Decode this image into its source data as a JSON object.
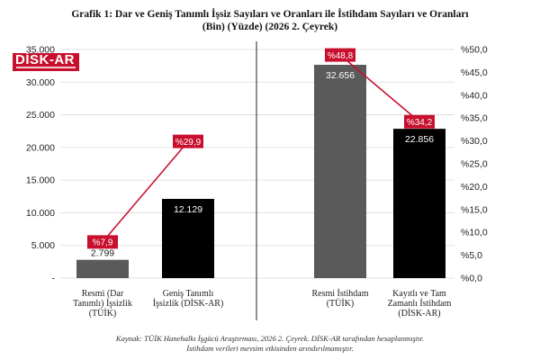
{
  "title_line1": "Grafik 1: Dar ve Geniş Tanımlı İşsiz Sayıları ve Oranları ile İstihdam Sayıları ve Oranları",
  "title_line2": "(Bin) (Yüzde) (2026 2. Çeyrek)",
  "logo_text": "DİSK-AR",
  "caption_line1": "Kaynak: TÜİK Hanehalkı İşgücü Araştırması, 2026 2. Çeyrek. DİSK-AR tarafından hesaplanmıştır.",
  "caption_line2": "İstihdam verileri mevsim etkisinden arındırılmamıştır.",
  "colors": {
    "accent": "#c8102e",
    "gray_bar": "#5a5a5a",
    "black_bar": "#000000",
    "grid": "#d9d9d9"
  },
  "chart_data": {
    "type": "bar",
    "left_axis": {
      "min": 0,
      "max": 35000,
      "step": 5000,
      "tick_labels": [
        "-",
        "5.000",
        "10.000",
        "15.000",
        "20.000",
        "25.000",
        "30.000",
        "35.000"
      ]
    },
    "right_axis": {
      "min": 0,
      "max": 50,
      "step": 5,
      "tick_labels": [
        "%0,0",
        "%5,0",
        "%10,0",
        "%15,0",
        "%20,0",
        "%25,0",
        "%30,0",
        "%35,0",
        "%40,0",
        "%45,0",
        "%50,0"
      ]
    },
    "grid": true,
    "groups": [
      {
        "bars": [
          {
            "category": [
              "Resmi (Dar",
              "Tanımlı) İşsizlik",
              "(TÜİK)"
            ],
            "value": 2799,
            "value_label": "2.799",
            "rate": 7.9,
            "rate_label": "%7,9",
            "color": "#5a5a5a"
          },
          {
            "category": [
              "Geniş Tanımlı",
              "İşsizlik (DİSK-AR)"
            ],
            "value": 12129,
            "value_label": "12.129",
            "rate": 29.9,
            "rate_label": "%29,9",
            "color": "#000000"
          }
        ]
      },
      {
        "bars": [
          {
            "category": [
              "Resmi İstihdam",
              "(TÜİK)"
            ],
            "value": 32656,
            "value_label": "32.656",
            "rate": 48.8,
            "rate_label": "%48,8",
            "color": "#5a5a5a"
          },
          {
            "category": [
              "Kayıtlı ve Tam",
              "Zamanlı İstihdam",
              "(DİSK-AR)"
            ],
            "value": 22856,
            "value_label": "22.856",
            "rate": 34.2,
            "rate_label": "%34,2",
            "color": "#000000"
          }
        ]
      }
    ]
  }
}
